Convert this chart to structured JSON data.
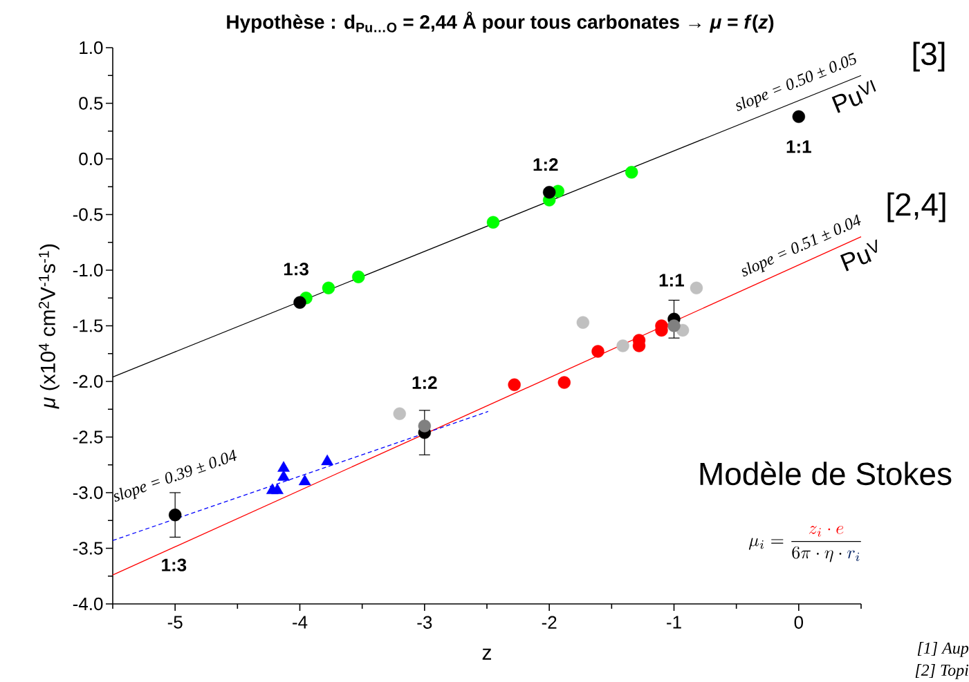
{
  "chart_data": {
    "type": "scatter",
    "title": "Hypothèse : d$_{Pu…O}$ = 2,44 Å pour tous carbonates → *μ* = *f*(*z*)",
    "xlabel": "z",
    "ylabel": "*μ* (x10$^{4}$ cm$^{2}$V$^{-1}$s$^{-1}$)",
    "xlim": [
      -5.5,
      0.5
    ],
    "ylim": [
      -4.0,
      1.0
    ],
    "xticks": [
      -5,
      -4,
      -3,
      -2,
      -1,
      0,
      {
        "value": -5.5,
        "label": null
      },
      {
        "value": -4.5,
        "label": null
      },
      {
        "value": -3.5,
        "label": null
      },
      {
        "value": -2.5,
        "label": null
      },
      {
        "value": -1.5,
        "label": null
      },
      {
        "value": -0.5,
        "label": null
      },
      {
        "value": 0.5,
        "label": null
      }
    ],
    "yticks": [
      {
        "value": 1.0,
        "label": "1.0"
      },
      {
        "value": 0.5,
        "label": "0.5"
      },
      {
        "value": 0.0,
        "label": "0.0"
      },
      {
        "value": -0.5,
        "label": "-0.5"
      },
      {
        "value": -1.0,
        "label": "-1.0"
      },
      {
        "value": -1.5,
        "label": "-1.5"
      },
      {
        "value": -2.0,
        "label": "-2.0"
      },
      {
        "value": -2.5,
        "label": "-2.5"
      },
      {
        "value": -3.0,
        "label": "-3.0"
      },
      {
        "value": -3.5,
        "label": "-3.5"
      },
      {
        "value": -4.0,
        "label": "-4.0"
      },
      {
        "value": 0.75,
        "label": null
      },
      {
        "value": 0.25,
        "label": null
      },
      {
        "value": -0.25,
        "label": null
      },
      {
        "value": -0.75,
        "label": null
      },
      {
        "value": -1.25,
        "label": null
      },
      {
        "value": -1.75,
        "label": null
      },
      {
        "value": -2.25,
        "label": null
      },
      {
        "value": -2.75,
        "label": null
      },
      {
        "value": -3.25,
        "label": null
      },
      {
        "value": -3.75,
        "label": null
      }
    ],
    "series": [
      {
        "type": "line",
        "color": "#000000",
        "line_style": "solid",
        "marker": "none",
        "x": [
          -5.5,
          0.5
        ],
        "values": [
          -1.96,
          0.75
        ]
      },
      {
        "type": "line",
        "color": "#ff0000",
        "line_style": "solid",
        "marker": "none",
        "x": [
          -5.5,
          0.5
        ],
        "values": [
          -3.74,
          -0.7
        ]
      },
      {
        "type": "line",
        "color": "#0000ff",
        "line_style": "dashed",
        "marker": "none",
        "x": [
          -5.5,
          -2.49
        ],
        "values": [
          -3.43,
          -2.27
        ]
      },
      {
        "color": "#00ff00",
        "marker": "circle",
        "x": [
          -3.95,
          -3.77,
          -3.53,
          -2.45,
          -2.0,
          -1.93,
          -1.34
        ],
        "values": [
          -1.25,
          -1.16,
          -1.06,
          -0.57,
          -0.37,
          -0.29,
          -0.12
        ]
      },
      {
        "color": "#c0c0c0",
        "marker": "circle",
        "x": [
          -3.2,
          -1.73,
          -1.41,
          -0.93,
          -0.82
        ],
        "values": [
          -2.29,
          -1.47,
          -1.68,
          -1.54,
          -1.16
        ]
      },
      {
        "color": "#0000ff",
        "marker": "triangle",
        "x": [
          -4.22,
          -4.18,
          -4.13,
          -4.13,
          -3.96,
          -3.78
        ],
        "values": [
          -2.98,
          -2.98,
          -2.86,
          -2.78,
          -2.9,
          -2.72
        ]
      },
      {
        "color": "#000000",
        "marker": "circle",
        "x": [
          -4.0,
          -2.0,
          0.0
        ],
        "values": [
          -1.29,
          -0.3,
          0.38
        ]
      },
      {
        "color": "#000000",
        "marker": "circle",
        "x": [
          -5.0,
          -3.0,
          -1.0
        ],
        "values": [
          -3.2,
          -2.46,
          -1.44
        ],
        "errors": [
          0.2,
          0.2,
          0.17
        ]
      },
      {
        "color": "#808080",
        "marker": "circle",
        "x": [
          -3.0,
          -1.0
        ],
        "values": [
          -2.4,
          -1.5
        ]
      },
      {
        "color": "#ff0000",
        "marker": "circle",
        "x": [
          -2.28,
          -1.88,
          -1.61,
          -1.28,
          -1.28,
          -1.1,
          -1.1
        ],
        "values": [
          -2.03,
          -2.01,
          -1.73,
          -1.63,
          -1.68,
          -1.5,
          -1.54
        ]
      }
    ],
    "annotations": [
      "1:3",
      "1:2",
      "1:1",
      "1:1",
      "1:2",
      "1:3",
      "slope = 0.50 ± 0.05",
      "slope = 0.51 ± 0.04",
      "slope = 0.39 ± 0.04",
      "Pu$^{VI}$",
      "Pu$^{V}$",
      "[3]",
      "[2,4]",
      "Modèle de Stokes",
      "\\mu_i = \\frac{\\textcolor{red}{z_i \\cdot e}}{6\\pi \\cdot \\eta \\cdot \\textcolor[HTML]{002060}{r_i}}",
      "[1] Aup",
      "[2] Topi"
    ]
  }
}
